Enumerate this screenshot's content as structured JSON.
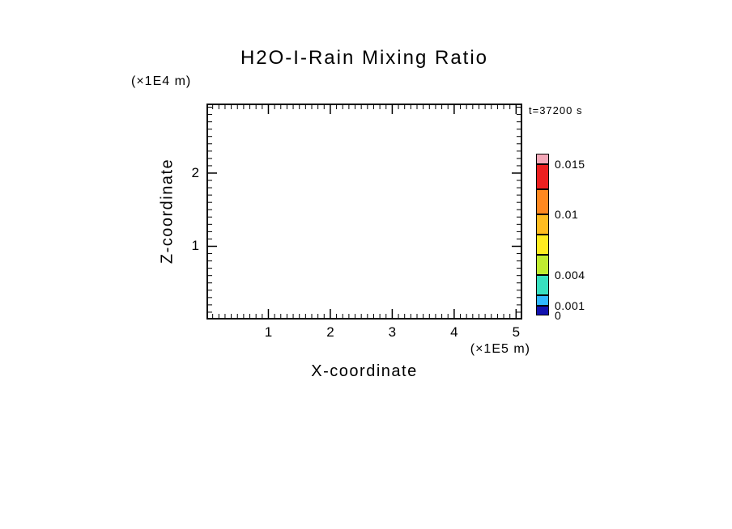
{
  "chart_data": {
    "type": "heatmap",
    "title": "H2O-I-Rain Mixing Ratio",
    "time_annotation": "t=37200 s",
    "xlabel": "X-coordinate",
    "x_units": "(×1E5 m)",
    "ylabel": "Z-coordinate",
    "y_units": "(×1E4 m)",
    "xlim": [
      0,
      5.1
    ],
    "ylim": [
      0,
      2.95
    ],
    "x_major_ticks": [
      1,
      2,
      3,
      4,
      5
    ],
    "x_minor_step": 0.1,
    "y_major_ticks": [
      1,
      2
    ],
    "y_minor_step": 0.1,
    "grid": false,
    "plot_area_empty": true,
    "values": [],
    "colorbar": {
      "vmin": 0,
      "vmax": 0.016,
      "segments": [
        {
          "from": 0,
          "to": 0.001,
          "color": "#1212B0"
        },
        {
          "from": 0.001,
          "to": 0.002,
          "color": "#30B8FF"
        },
        {
          "from": 0.002,
          "to": 0.004,
          "color": "#38E0C0"
        },
        {
          "from": 0.004,
          "to": 0.006,
          "color": "#C0EC30"
        },
        {
          "from": 0.006,
          "to": 0.008,
          "color": "#FFEC20"
        },
        {
          "from": 0.008,
          "to": 0.01,
          "color": "#FFBC20"
        },
        {
          "from": 0.01,
          "to": 0.0125,
          "color": "#FF8820"
        },
        {
          "from": 0.0125,
          "to": 0.015,
          "color": "#EC2020"
        },
        {
          "from": 0.015,
          "to": 0.016,
          "color": "#F4A8B8"
        }
      ],
      "labels": [
        {
          "value": 0.015,
          "text": "0.015"
        },
        {
          "value": 0.01,
          "text": "0.01"
        },
        {
          "value": 0.004,
          "text": "0.004"
        },
        {
          "value": 0.001,
          "text": "0.001"
        },
        {
          "value": 0,
          "text": "0"
        }
      ]
    }
  },
  "frame_color": "#000000",
  "background_color": "#FFFFFF"
}
